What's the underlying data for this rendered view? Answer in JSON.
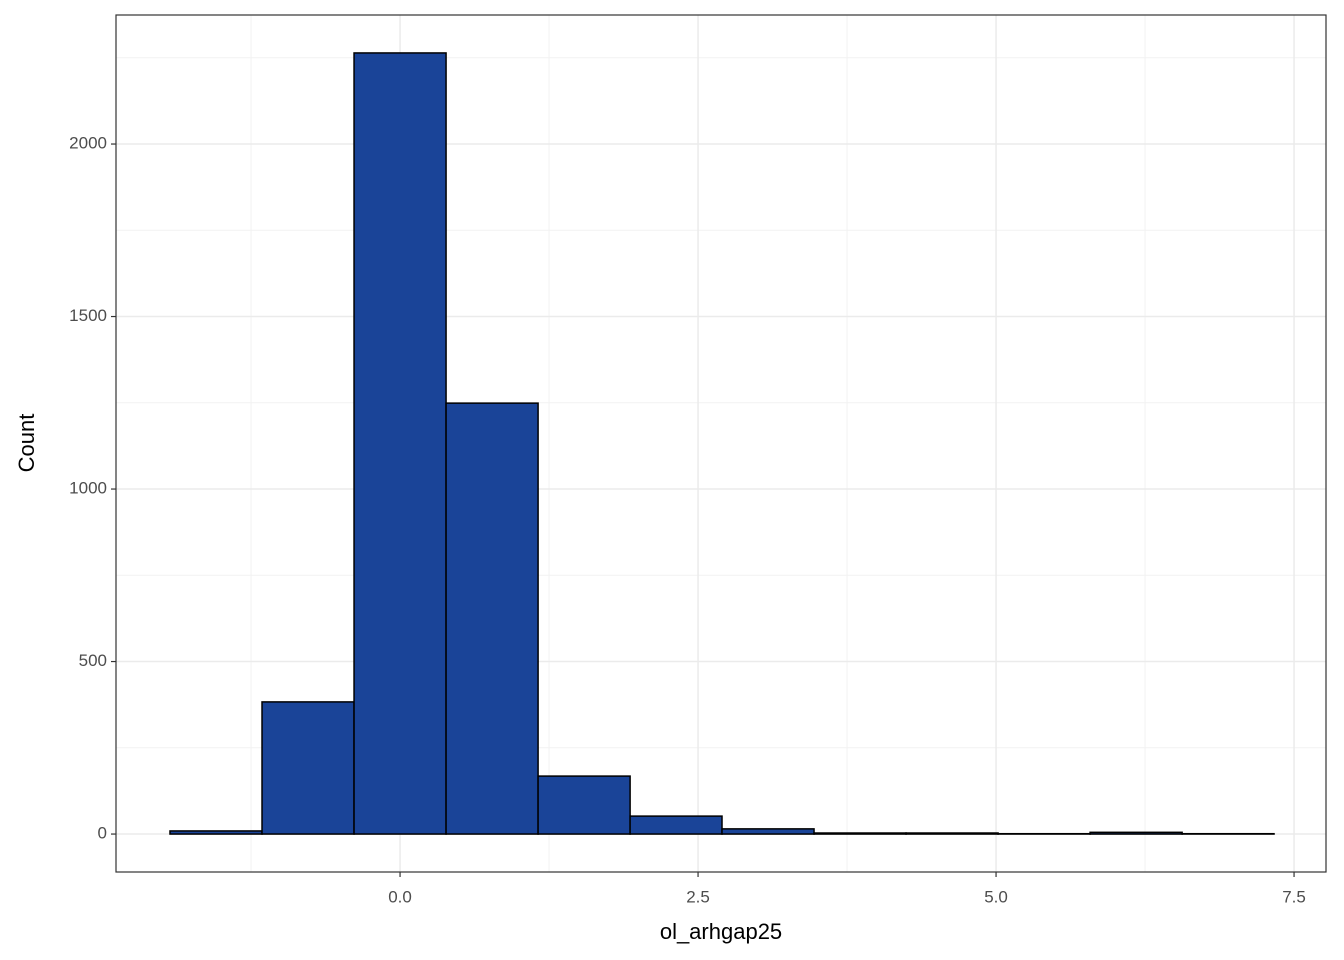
{
  "chart_data": {
    "type": "histogram",
    "x_label": "ol_arhgap25",
    "y_label": "Count",
    "bins": [
      -1.93,
      -1.158,
      -0.386,
      0.386,
      1.158,
      1.93,
      2.701,
      3.473,
      4.245,
      5.017,
      5.789,
      6.561,
      7.332
    ],
    "values": [
      9,
      383,
      2264,
      1249,
      168,
      52,
      15,
      3,
      3,
      1,
      5,
      1
    ],
    "color": "#1a4498",
    "xlim": [
      -2.383,
      7.768
    ],
    "ylim": [
      -110,
      2374
    ],
    "xticks": [
      {
        "value": 0,
        "label": "0.0"
      },
      {
        "value": 2.5,
        "label": "2.5"
      },
      {
        "value": 5,
        "label": "5.0"
      },
      {
        "value": 7.5,
        "label": "7.5"
      }
    ],
    "yticks": [
      0,
      500,
      1000,
      1500,
      2000
    ],
    "grid": true
  }
}
